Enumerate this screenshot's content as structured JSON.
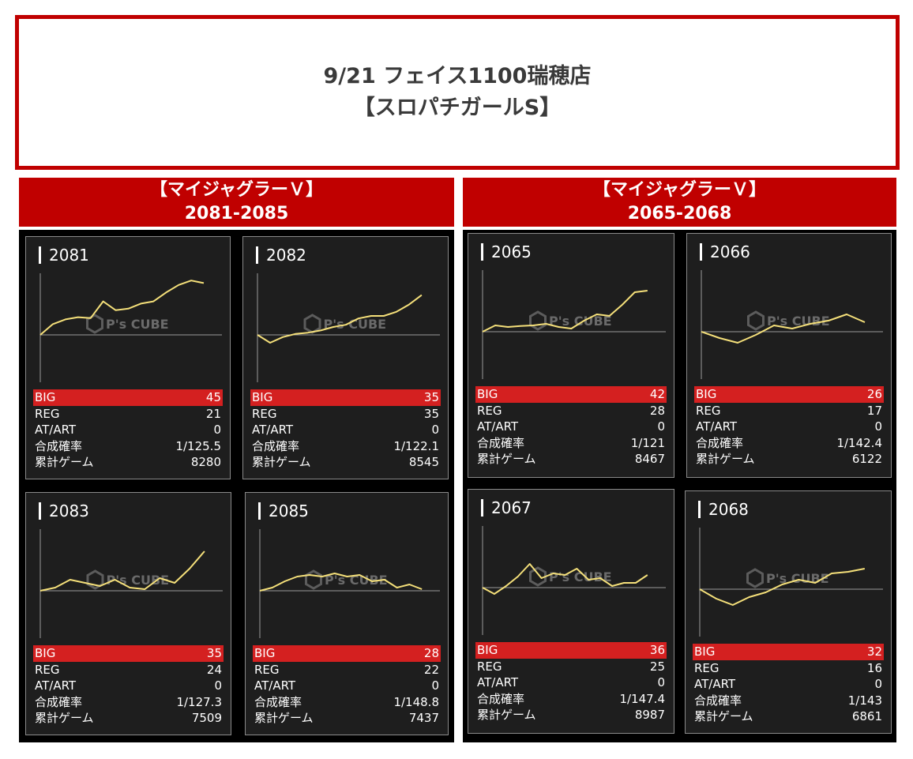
{
  "header": {
    "line1": "9/21 フェイス1100瑞穂店",
    "line2": "【スロパチガールS】"
  },
  "sections": [
    {
      "title": "【マイジャグラーＶ】",
      "range": "2081-2085",
      "machines": [
        {
          "id": "2081",
          "big": "45",
          "reg": "21",
          "at_art": "0",
          "rate": "1/125.5",
          "games": "8280"
        },
        {
          "id": "2082",
          "big": "35",
          "reg": "35",
          "at_art": "0",
          "rate": "1/122.1",
          "games": "8545"
        },
        {
          "id": "2083",
          "big": "35",
          "reg": "24",
          "at_art": "0",
          "rate": "1/127.3",
          "games": "7509"
        },
        {
          "id": "2085",
          "big": "28",
          "reg": "22",
          "at_art": "0",
          "rate": "1/148.8",
          "games": "7437"
        }
      ]
    },
    {
      "title": "【マイジャグラーＶ】",
      "range": "2065-2068",
      "machines": [
        {
          "id": "2065",
          "big": "42",
          "reg": "28",
          "at_art": "0",
          "rate": "1/121",
          "games": "8467"
        },
        {
          "id": "2066",
          "big": "26",
          "reg": "17",
          "at_art": "0",
          "rate": "1/142.4",
          "games": "6122"
        },
        {
          "id": "2067",
          "big": "36",
          "reg": "25",
          "at_art": "0",
          "rate": "1/147.4",
          "games": "8987"
        },
        {
          "id": "2068",
          "big": "32",
          "reg": "16",
          "at_art": "0",
          "rate": "1/143",
          "games": "6861"
        }
      ]
    }
  ],
  "labels": {
    "big": "BIG",
    "reg": "REG",
    "at_art": "AT/ART",
    "rate": "合成確率",
    "games": "累計ゲーム"
  },
  "watermark": "P's CUBE",
  "colors": {
    "brand_red": "#c00000",
    "big_row": "#d42020",
    "line": "#f5e07a",
    "panel_bg": "#1e1e1e"
  },
  "chart_data": [
    {
      "type": "line",
      "machine": "2081",
      "values": [
        0,
        0.34,
        0.49,
        0.56,
        0.53,
        1.06,
        0.78,
        0.83,
        0.99,
        1.06,
        1.34,
        1.58,
        1.72,
        1.64
      ],
      "ylim": [
        -1.5,
        2
      ]
    },
    {
      "type": "line",
      "machine": "2082",
      "values": [
        0,
        -0.25,
        -0.07,
        0.03,
        0.07,
        0.14,
        0.25,
        0.32,
        0.52,
        0.6,
        0.6,
        0.73,
        0.96,
        1.26
      ],
      "ylim": [
        -1.5,
        2
      ]
    },
    {
      "type": "line",
      "machine": "2083",
      "values": [
        0,
        0.1,
        0.35,
        0.25,
        0.15,
        0.35,
        0.1,
        0.05,
        0.4,
        0.25,
        0.7,
        1.25
      ],
      "ylim": [
        -1.5,
        2
      ]
    },
    {
      "type": "line",
      "machine": "2085",
      "values": [
        0,
        0.1,
        0.3,
        0.45,
        0.5,
        0.45,
        0.55,
        0.45,
        0.5,
        0.3,
        0.35,
        0.1,
        0.2,
        0.05
      ],
      "ylim": [
        -1.5,
        2
      ]
    },
    {
      "type": "line",
      "machine": "2065",
      "values": [
        0,
        0.2,
        0.15,
        0.18,
        0.2,
        0.25,
        0.15,
        0.1,
        0.35,
        0.55,
        0.5,
        0.85,
        1.25,
        1.3
      ],
      "ylim": [
        -1.5,
        2
      ]
    },
    {
      "type": "line",
      "machine": "2066",
      "values": [
        0,
        -0.2,
        -0.35,
        -0.1,
        0.2,
        0.1,
        0.25,
        0.35,
        0.55,
        0.3
      ],
      "ylim": [
        -1.5,
        2
      ]
    },
    {
      "type": "line",
      "machine": "2067",
      "values": [
        0,
        -0.2,
        0.05,
        0.35,
        0.75,
        0.3,
        0.45,
        0.4,
        0.6,
        0.25,
        0.3,
        0.05,
        0.15,
        0.15,
        0.4
      ],
      "ylim": [
        -1.5,
        2
      ]
    },
    {
      "type": "line",
      "machine": "2068",
      "values": [
        0,
        -0.3,
        -0.5,
        -0.25,
        -0.1,
        0.15,
        0.3,
        0.2,
        0.5,
        0.55,
        0.65
      ],
      "ylim": [
        -1.5,
        2
      ]
    }
  ]
}
